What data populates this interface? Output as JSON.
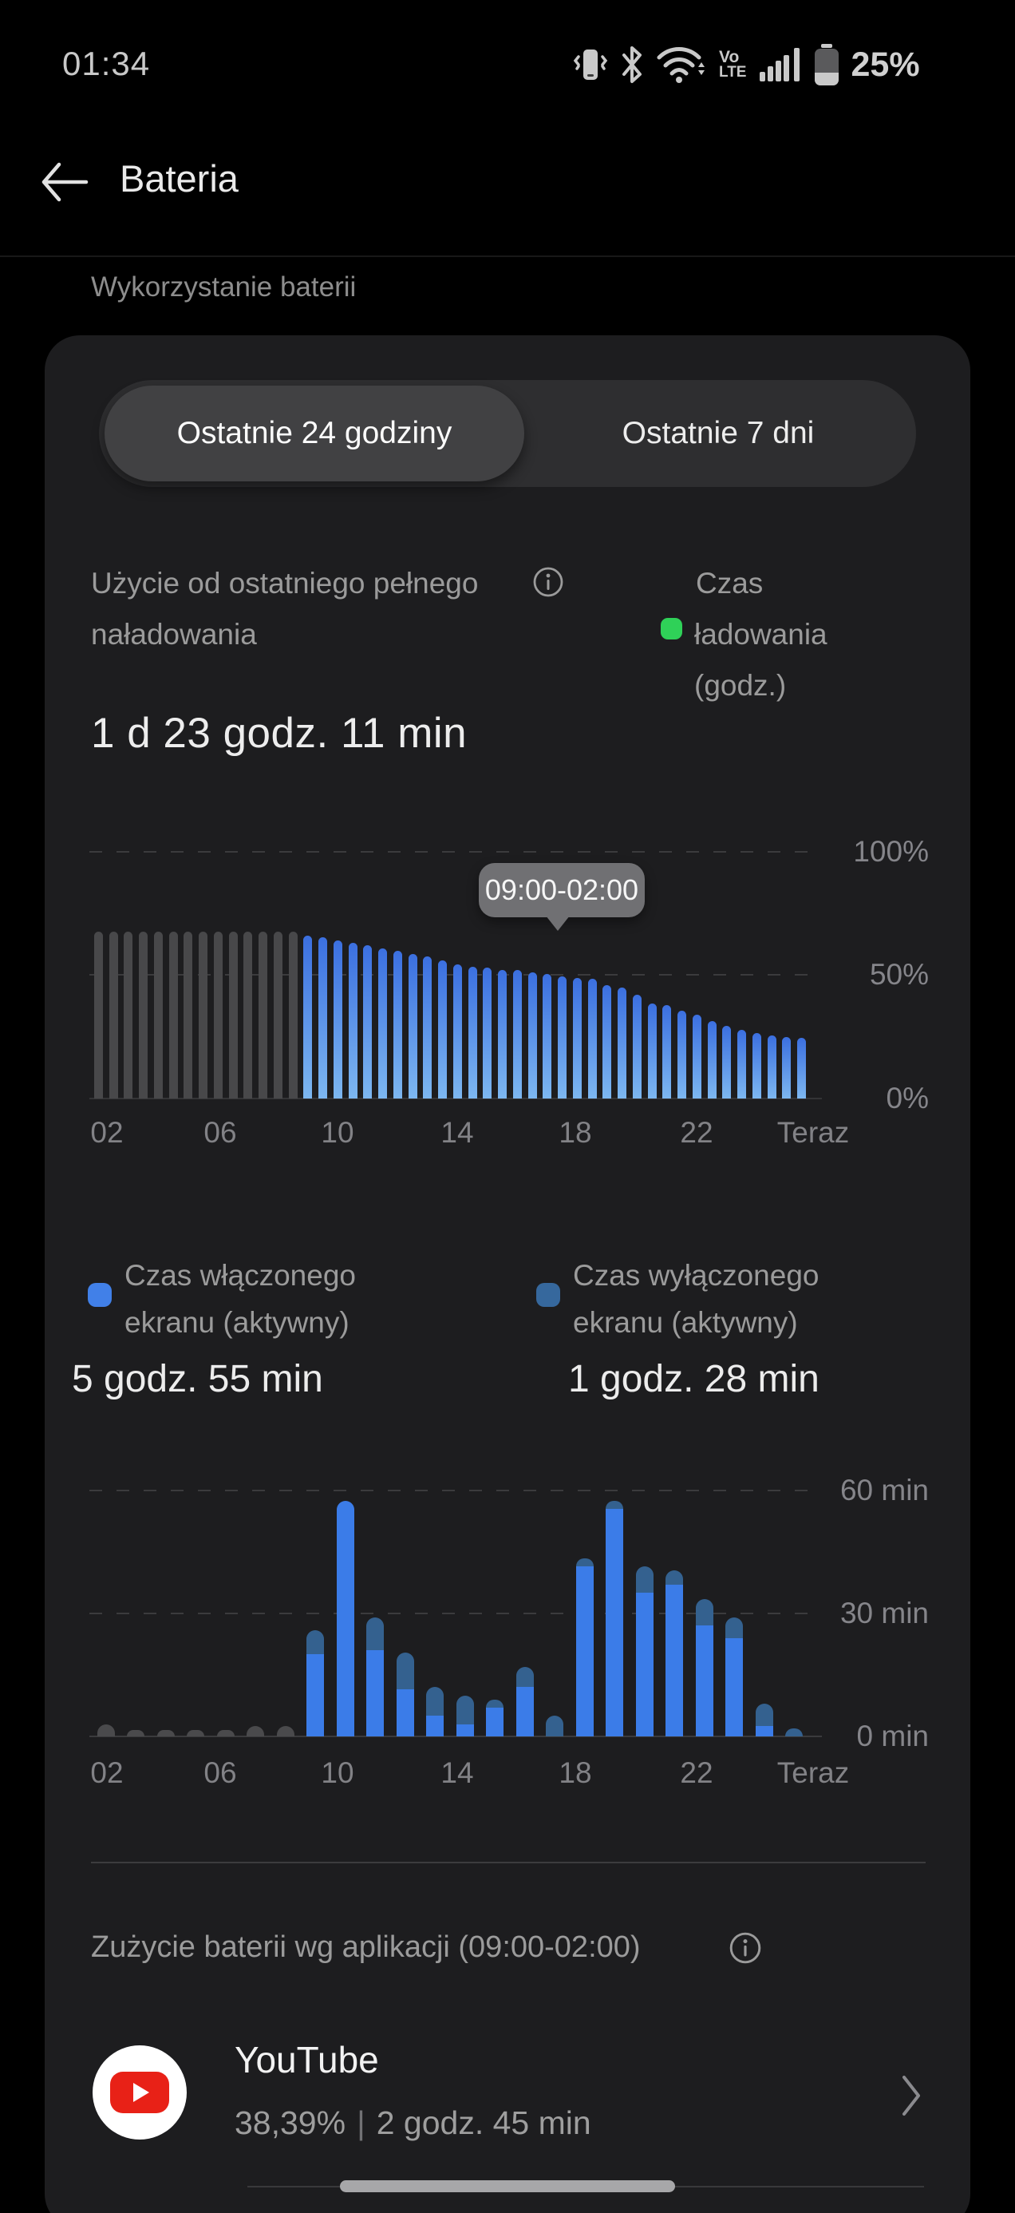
{
  "status_bar": {
    "time": "01:34",
    "battery_percent": "25%",
    "volte_top": "Vo",
    "volte_bottom": "LTE"
  },
  "header": {
    "title": "Bateria"
  },
  "section_label": "Wykorzystanie baterii",
  "tabs": {
    "selected": "Ostatnie 24 godziny",
    "other": "Ostatnie 7 dni"
  },
  "usage": {
    "title_line1": "Użycie od ostatniego pełnego",
    "title_line2": "naładowania",
    "duration": "1 d 23 godz. 11 min"
  },
  "charge_legend": {
    "line1": "Czas",
    "line2": "ładowania",
    "line3": "(godz.)",
    "dot_color": "#2fd158"
  },
  "battery_tooltip": "09:00-02:00",
  "screen_legend": {
    "on": {
      "label_line1": "Czas włączonego",
      "label_line2": "ekranu (aktywny)",
      "value": "5 godz. 55 min",
      "dot_color": "#4180e8"
    },
    "off": {
      "label_line1": "Czas wyłączonego",
      "label_line2": "ekranu (aktywny)",
      "value": "1 godz. 28 min",
      "dot_color": "#36689d"
    }
  },
  "apps": {
    "title": "Zużycie baterii wg aplikacji (09:00-02:00)",
    "items": [
      {
        "name": "YouTube",
        "percent": "38,39%",
        "separator": "|",
        "time": "2 godz. 45 min"
      }
    ]
  },
  "colors": {
    "card_bg": "#1d1d1f",
    "bar_gray": "#48484a",
    "bar_blue_top": "#3b6fe0",
    "bar_blue_bottom": "#7db7f0",
    "screen_on_blue": "#3b7ce8",
    "screen_off_blue": "#34618f",
    "charge_green": "#2fd158"
  },
  "chart_data": [
    {
      "type": "bar",
      "title": "Poziom baterii",
      "unit": "%",
      "interval_minutes": 30,
      "ylim": [
        0,
        100
      ],
      "y_ticks": [
        "100%",
        "50%",
        "0%"
      ],
      "x_labels": [
        "02",
        "06",
        "10",
        "14",
        "18",
        "22",
        "Teraz"
      ],
      "highlight_tooltip": "09:00-02:00",
      "series": [
        {
          "name": "gray_before_period",
          "color": "#48484a",
          "values": [
            67.5,
            67.5,
            67.5,
            67.5,
            67.5,
            67.5,
            67.5,
            67.5,
            67.5,
            67.5,
            67.5,
            67.5,
            67.5,
            67.5
          ]
        },
        {
          "name": "blue_period_09_00_to_02_00",
          "color_top": "#3b6fe0",
          "color_bottom": "#7db7f0",
          "values": [
            66,
            65.5,
            64,
            63,
            62,
            61,
            60,
            58.5,
            57.5,
            56,
            54.5,
            53.5,
            53,
            52,
            52,
            51,
            50.5,
            49.5,
            49,
            48.5,
            46,
            45,
            42,
            38.5,
            38,
            35.5,
            34,
            31.5,
            29.5,
            28,
            26.5,
            25.5,
            25,
            24.5
          ]
        }
      ]
    },
    {
      "type": "stacked-bar",
      "title": "Czas ekranu na godzinę",
      "unit": "min",
      "interval_minutes": 60,
      "ylim": [
        0,
        60
      ],
      "y_ticks": [
        "60 min",
        "30 min",
        "0 min"
      ],
      "x_labels": [
        "02",
        "06",
        "10",
        "14",
        "18",
        "22",
        "Teraz"
      ],
      "series_legend": [
        "Czas włączonego ekranu (aktywny)",
        "Czas wyłączonego ekranu (aktywny)"
      ],
      "slots": [
        {
          "gray": 3
        },
        {
          "gray": 1.5
        },
        {
          "gray": 1.5
        },
        {
          "gray": 1.5
        },
        {
          "gray": 1.5
        },
        {
          "gray": 2.5
        },
        {
          "gray": 2.5
        },
        {
          "on": 20,
          "off": 6
        },
        {
          "on": 57.5,
          "off": 0
        },
        {
          "on": 21,
          "off": 8
        },
        {
          "on": 11.5,
          "off": 9
        },
        {
          "on": 5,
          "off": 7
        },
        {
          "on": 3,
          "off": 7
        },
        {
          "on": 7,
          "off": 2
        },
        {
          "on": 12,
          "off": 5
        },
        {
          "on": 0,
          "off": 5
        },
        {
          "on": 41.5,
          "off": 2
        },
        {
          "on": 55.5,
          "off": 2
        },
        {
          "on": 35,
          "off": 6.5
        },
        {
          "on": 37,
          "off": 3.5
        },
        {
          "on": 27,
          "off": 6.5
        },
        {
          "on": 24,
          "off": 5
        },
        {
          "on": 2.5,
          "off": 5.5
        },
        {
          "on": 0,
          "off": 2
        }
      ]
    }
  ]
}
